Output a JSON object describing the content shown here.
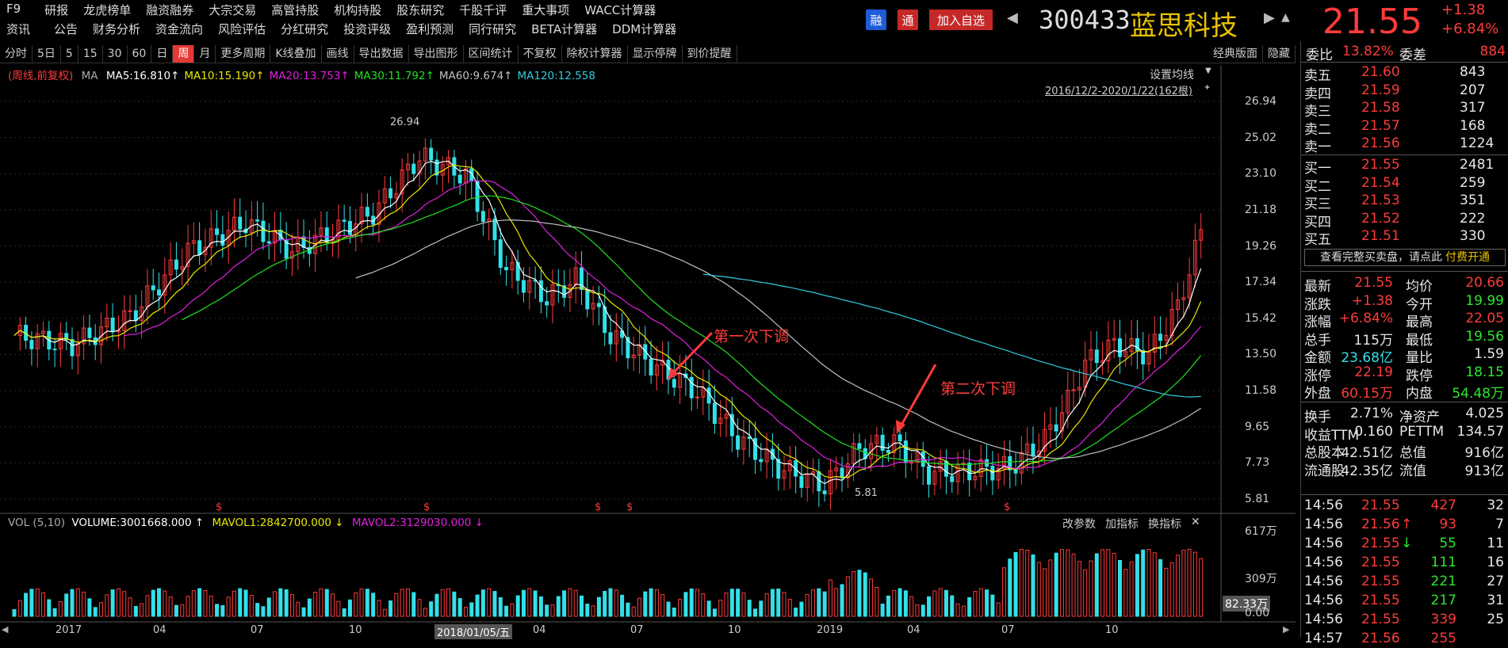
{
  "menu": {
    "row1": [
      "F9",
      "研报",
      "龙虎榜单",
      "融资融券",
      "大宗交易",
      "高管持股",
      "机构持股",
      "股东研究",
      "千股千评",
      "重大事项",
      "WACC计算器"
    ],
    "row2": [
      "资讯",
      "公告",
      "财务分析",
      "资金流向",
      "风险评估",
      "分红研究",
      "投资评级",
      "盈利预测",
      "同行研究",
      "BETA计算器",
      "DDM计算器"
    ]
  },
  "header": {
    "badge_rong": "融",
    "badge_tong": "通",
    "add_fav": "加入自选",
    "code": "300433",
    "name": "蓝思科技",
    "price": "21.55",
    "change": "+1.38",
    "change_pct": "+6.84%",
    "colors": {
      "up": "#ff3b3b",
      "down": "#2ee62e",
      "name": "#e8c200"
    }
  },
  "toolbar": {
    "items": [
      "分时",
      "5日",
      "5",
      "15",
      "30",
      "60",
      "日",
      "周",
      "月",
      "更多周期",
      "K线叠加",
      "画线",
      "导出数据",
      "导出图形",
      "区间统计",
      "不复权",
      "除权计算器",
      "显示停牌",
      "到价提醒"
    ],
    "active_index": 7,
    "classic": "经典版面",
    "hide": "隐藏"
  },
  "chart": {
    "period_label": "(周线,前复权)",
    "ma_label": "MA",
    "ma": [
      {
        "name": "MA5:16.810",
        "color": "#ffffff"
      },
      {
        "name": "MA10:15.190",
        "color": "#e8e800"
      },
      {
        "name": "MA20:13.753",
        "color": "#e020e0"
      },
      {
        "name": "MA30:11.792",
        "color": "#20e020"
      },
      {
        "name": "MA60:9.674",
        "color": "#c0c0c0"
      },
      {
        "name": "MA120:12.558",
        "color": "#33ccdd"
      }
    ],
    "setting_label": "设置均线",
    "range_label": "2016/12/2-2020/1/22(162根)",
    "price_ticks": [
      "26.94",
      "25.02",
      "23.10",
      "21.18",
      "19.26",
      "17.34",
      "15.42",
      "13.50",
      "11.58",
      "9.65",
      "7.73",
      "5.81"
    ],
    "high_label": "26.94",
    "low_label": "5.81",
    "annotations": [
      "第一次下调",
      "第二次下调"
    ],
    "x_ticks": [
      "2017",
      "04",
      "07",
      "10",
      "2018/01/05/五",
      "04",
      "07",
      "10",
      "2019",
      "04",
      "07",
      "10"
    ],
    "vol_label": "VOL (5,10)",
    "volume": "VOLUME:3001668.000",
    "mavol1": "MAVOL1:2842700.000",
    "mavol2": "MAVOL2:3129030.000",
    "vol_buttons": [
      "改参数",
      "加指标",
      "换指标"
    ],
    "vol_ticks": [
      "617万",
      "309万",
      "82.33万",
      "0.00"
    ]
  },
  "order_book": {
    "weibi_label": "委比",
    "weibi": "13.82%",
    "weicha_label": "委差",
    "weicha": "884",
    "asks": [
      {
        "label": "卖五",
        "price": "21.60",
        "vol": "843"
      },
      {
        "label": "卖四",
        "price": "21.59",
        "vol": "207"
      },
      {
        "label": "卖三",
        "price": "21.58",
        "vol": "317"
      },
      {
        "label": "卖二",
        "price": "21.57",
        "vol": "168"
      },
      {
        "label": "卖一",
        "price": "21.56",
        "vol": "1224"
      }
    ],
    "bids": [
      {
        "label": "买一",
        "price": "21.55",
        "vol": "2481"
      },
      {
        "label": "买二",
        "price": "21.54",
        "vol": "259"
      },
      {
        "label": "买三",
        "price": "21.53",
        "vol": "351"
      },
      {
        "label": "买四",
        "price": "21.52",
        "vol": "222"
      },
      {
        "label": "买五",
        "price": "21.51",
        "vol": "330"
      }
    ],
    "promo_text": "查看完整买卖盘，请点此",
    "promo_link": "付费开通"
  },
  "quote": [
    {
      "l1": "最新",
      "v1": "21.55",
      "c1": "red",
      "l2": "均价",
      "v2": "20.66",
      "c2": "red"
    },
    {
      "l1": "涨跌",
      "v1": "+1.38",
      "c1": "red",
      "l2": "今开",
      "v2": "19.99",
      "c2": "green"
    },
    {
      "l1": "涨幅",
      "v1": "+6.84%",
      "c1": "red",
      "l2": "最高",
      "v2": "22.05",
      "c2": "red"
    },
    {
      "l1": "总手",
      "v1": "115万",
      "c1": "white",
      "l2": "最低",
      "v2": "19.56",
      "c2": "green"
    },
    {
      "l1": "金额",
      "v1": "23.68亿",
      "c1": "cyan",
      "l2": "量比",
      "v2": "1.59",
      "c2": "white"
    },
    {
      "l1": "涨停",
      "v1": "22.19",
      "c1": "red",
      "l2": "跌停",
      "v2": "18.15",
      "c2": "green"
    },
    {
      "l1": "外盘",
      "v1": "60.15万",
      "c1": "red",
      "l2": "内盘",
      "v2": "54.48万",
      "c2": "green"
    }
  ],
  "fundamentals": [
    {
      "l1": "换手",
      "v1": "2.71%",
      "l2": "净资产",
      "v2": "4.025"
    },
    {
      "l1": "收益TTM",
      "v1": "0.160",
      "l2": "PETTM",
      "v2": "134.57"
    },
    {
      "l1": "总股本",
      "v1": "42.51亿",
      "l2": "总值",
      "v2": "916亿"
    },
    {
      "l1": "流通股",
      "v1": "42.35亿",
      "l2": "流值",
      "v2": "913亿"
    }
  ],
  "ticks": [
    {
      "time": "14:56",
      "price": "21.55",
      "arrow": "",
      "vol": "427",
      "n": "32",
      "vc": "red"
    },
    {
      "time": "14:56",
      "price": "21.56",
      "arrow": "↑",
      "vol": "93",
      "n": "7",
      "vc": "red"
    },
    {
      "time": "14:56",
      "price": "21.55",
      "arrow": "↓",
      "vol": "55",
      "n": "11",
      "vc": "green"
    },
    {
      "time": "14:56",
      "price": "21.55",
      "arrow": "",
      "vol": "111",
      "n": "16",
      "vc": "green"
    },
    {
      "time": "14:56",
      "price": "21.55",
      "arrow": "",
      "vol": "221",
      "n": "27",
      "vc": "green"
    },
    {
      "time": "14:56",
      "price": "21.55",
      "arrow": "",
      "vol": "217",
      "n": "31",
      "vc": "green"
    },
    {
      "time": "14:56",
      "price": "21.55",
      "arrow": "",
      "vol": "339",
      "n": "25",
      "vc": "red"
    },
    {
      "time": "14:57",
      "price": "21.56",
      "arrow": "",
      "vol": "255",
      "n": "",
      "vc": "red"
    }
  ]
}
